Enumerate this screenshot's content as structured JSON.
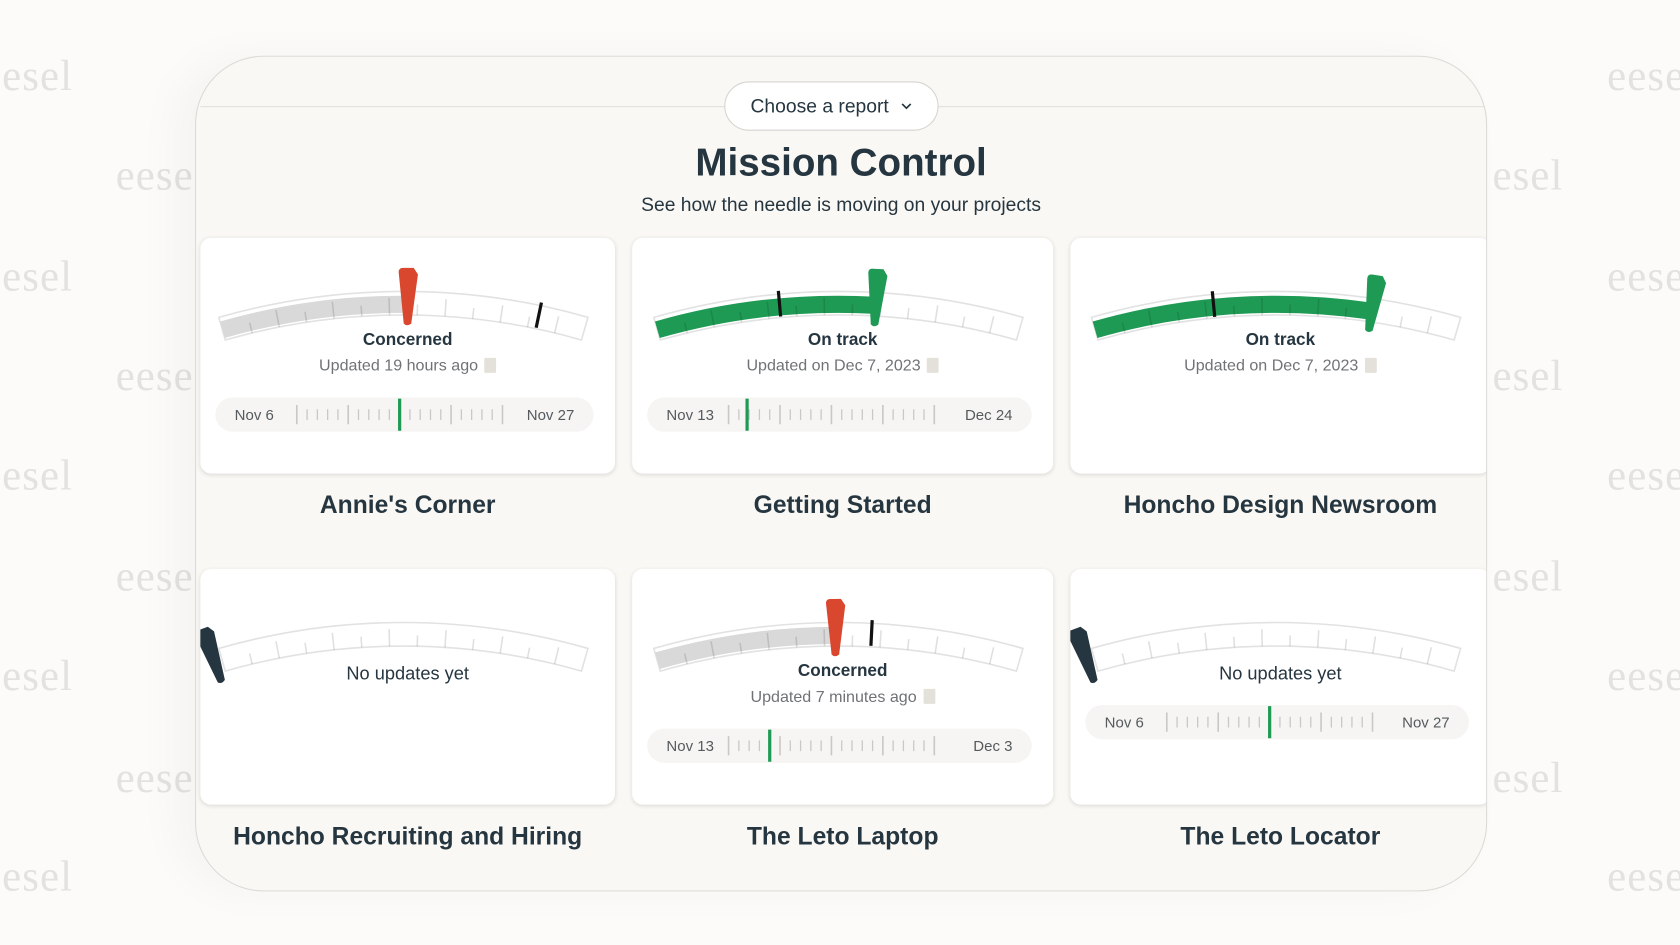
{
  "watermark": "eesel",
  "header": {
    "report_select_label": "Choose a report",
    "title": "Mission Control",
    "subtitle": "See how the needle is moving on your projects"
  },
  "colors": {
    "concerned": "#d9472f",
    "on_track": "#1f9a55",
    "no_update": "#263640",
    "grey_fill": "#d9d9d9",
    "marker": "#111111"
  },
  "projects": [
    {
      "name": "Annie's Corner",
      "status": "Concerned",
      "updated": "Updated 19 hours ago",
      "state": "concerned",
      "progress": 0.5,
      "needle": 0.51,
      "target": 0.87,
      "timeline": {
        "start": "Nov 6",
        "end": "Nov 27",
        "current": 0.5
      }
    },
    {
      "name": "Getting Started",
      "status": "On track",
      "updated": "Updated on Dec 7, 2023",
      "state": "on_track",
      "progress": 0.6,
      "needle": 0.6,
      "target": 0.34,
      "timeline": {
        "start": "Nov 13",
        "end": "Dec 24",
        "current": 0.09
      }
    },
    {
      "name": "Honcho Design Newsroom",
      "status": "On track",
      "updated": "Updated on Dec 7, 2023",
      "state": "on_track",
      "progress": 0.75,
      "needle": 0.76,
      "target": 0.33
    },
    {
      "name": "Honcho Recruiting and Hiring",
      "status": "No updates yet",
      "state": "no_update",
      "needle": 0
    },
    {
      "name": "The Leto Laptop",
      "status": "Concerned",
      "updated": "Updated 7 minutes ago",
      "state": "concerned",
      "progress": 0.49,
      "needle": 0.49,
      "target": 0.59,
      "timeline": {
        "start": "Nov 13",
        "end": "Dec 3",
        "current": 0.2
      }
    },
    {
      "name": "The Leto Locator",
      "status": "No updates yet",
      "state": "no_update",
      "needle": 0,
      "timeline": {
        "start": "Nov 6",
        "end": "Nov 27",
        "current": 0.5
      }
    }
  ]
}
